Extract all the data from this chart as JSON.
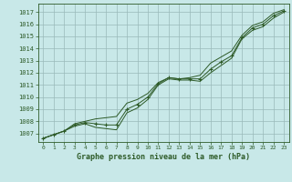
{
  "title": "Graphe pression niveau de la mer (hPa)",
  "bg_color": "#c8e8e8",
  "grid_color": "#9ababa",
  "line_color": "#2d5a27",
  "xlim": [
    -0.5,
    23.5
  ],
  "ylim": [
    1006.3,
    1017.7
  ],
  "yticks": [
    1007,
    1008,
    1009,
    1010,
    1011,
    1012,
    1013,
    1014,
    1015,
    1016,
    1017
  ],
  "xticks": [
    0,
    1,
    2,
    3,
    4,
    5,
    6,
    7,
    8,
    9,
    10,
    11,
    12,
    13,
    14,
    15,
    16,
    17,
    18,
    19,
    20,
    21,
    22,
    23
  ],
  "s_marker": [
    1006.6,
    1006.9,
    1007.2,
    1007.7,
    1007.9,
    1007.8,
    1007.7,
    1007.7,
    1009.0,
    1009.4,
    1010.0,
    1011.1,
    1011.6,
    1011.5,
    1011.5,
    1011.5,
    1012.3,
    1012.9,
    1013.4,
    1014.9,
    1015.7,
    1016.0,
    1016.7,
    1017.1
  ],
  "s_upper": [
    1006.6,
    1006.9,
    1007.2,
    1007.8,
    1008.0,
    1008.2,
    1008.3,
    1008.4,
    1009.5,
    1009.8,
    1010.3,
    1011.2,
    1011.6,
    1011.5,
    1011.6,
    1011.8,
    1012.8,
    1013.3,
    1013.8,
    1015.1,
    1015.9,
    1016.2,
    1016.9,
    1017.2
  ],
  "s_lower": [
    1006.6,
    1006.9,
    1007.2,
    1007.6,
    1007.8,
    1007.5,
    1007.4,
    1007.3,
    1008.7,
    1009.1,
    1009.8,
    1011.0,
    1011.5,
    1011.4,
    1011.4,
    1011.3,
    1012.0,
    1012.6,
    1013.2,
    1014.8,
    1015.5,
    1015.8,
    1016.5,
    1017.0
  ]
}
